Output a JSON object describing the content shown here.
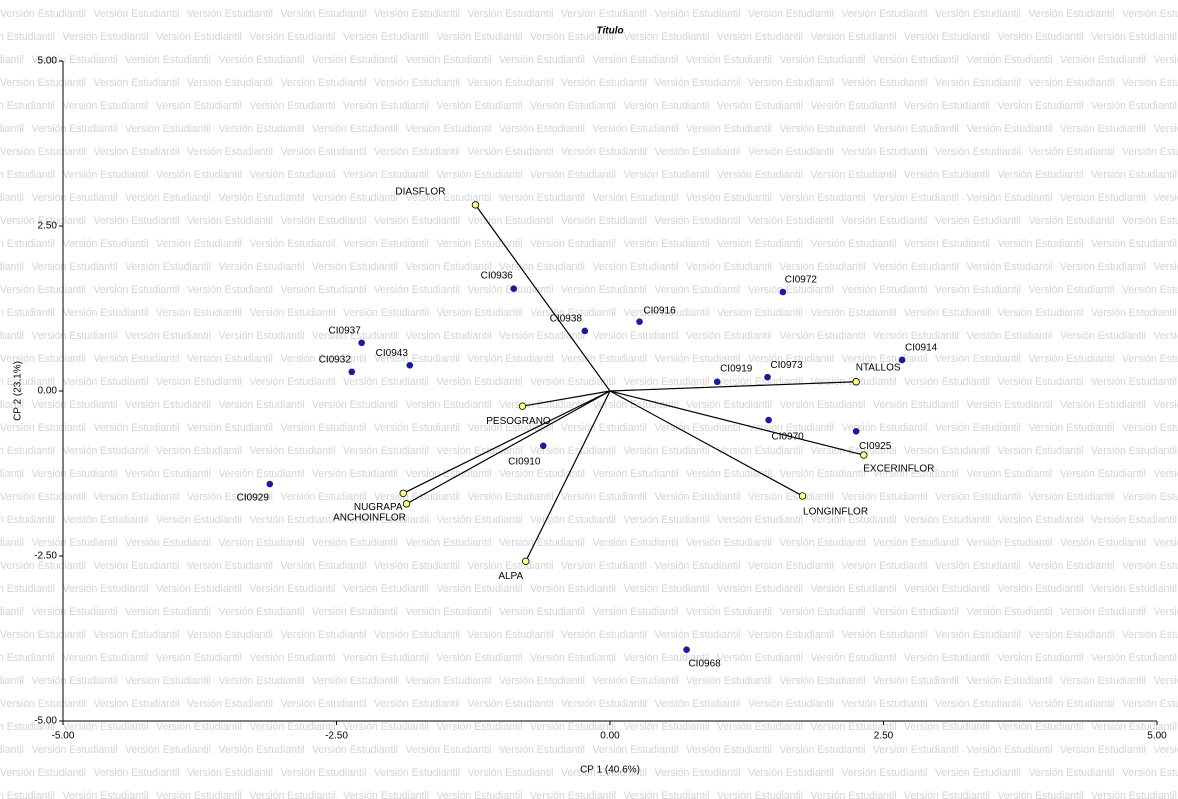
{
  "chart_data": {
    "type": "biplot",
    "title": "Título",
    "watermark": "Versión Estudiantil",
    "x_label": "CP 1 (40.6%)",
    "y_label": "CP 2 (23.1%)",
    "xlim": [
      -5,
      5
    ],
    "ylim": [
      -5,
      5
    ],
    "xticks": [
      {
        "value": -5,
        "label": "-5.00"
      },
      {
        "value": -2.5,
        "label": "-2.50"
      },
      {
        "value": 0,
        "label": "0.00"
      },
      {
        "value": 2.5,
        "label": "2.50"
      },
      {
        "value": 5,
        "label": "5.00"
      }
    ],
    "yticks": [
      {
        "value": -5,
        "label": "-5.00"
      },
      {
        "value": -2.5,
        "label": "-2.50"
      },
      {
        "value": 0,
        "label": "0.00"
      },
      {
        "value": 2.5,
        "label": "2.50"
      },
      {
        "value": 5,
        "label": "5.00"
      }
    ],
    "point_color": "#1a1a9c",
    "vector_color": "#ffff80",
    "points": [
      {
        "label": "CI0936",
        "x": -0.88,
        "y": 1.55
      },
      {
        "label": "CI0972",
        "x": 1.58,
        "y": 1.5
      },
      {
        "label": "CI0916",
        "x": 0.27,
        "y": 1.05
      },
      {
        "label": "CI0938",
        "x": -0.23,
        "y": 0.91
      },
      {
        "label": "CI0937",
        "x": -2.27,
        "y": 0.73
      },
      {
        "label": "CI0943",
        "x": -1.83,
        "y": 0.39
      },
      {
        "label": "CI0932",
        "x": -2.36,
        "y": 0.29
      },
      {
        "label": "CI0914",
        "x": 2.67,
        "y": 0.47
      },
      {
        "label": "CI0919",
        "x": 0.98,
        "y": 0.14
      },
      {
        "label": "CI0973",
        "x": 1.44,
        "y": 0.21
      },
      {
        "label": "CI0970",
        "x": 1.45,
        "y": -0.44
      },
      {
        "label": "CI0925",
        "x": 2.25,
        "y": -0.61
      },
      {
        "label": "CI0910",
        "x": -0.61,
        "y": -0.83
      },
      {
        "label": "CI0929",
        "x": -3.11,
        "y": -1.41
      },
      {
        "label": "CI0968",
        "x": 0.7,
        "y": -3.92
      }
    ],
    "vectors": [
      {
        "label": "DIASFLOR",
        "x": -1.23,
        "y": 2.82
      },
      {
        "label": "NTALLOS",
        "x": 2.25,
        "y": 0.14
      },
      {
        "label": "PESOGRANO",
        "x": -0.8,
        "y": -0.23
      },
      {
        "label": "EXCERINFLOR",
        "x": 2.32,
        "y": -0.97
      },
      {
        "label": "LONGINFLOR",
        "x": 1.76,
        "y": -1.59
      },
      {
        "label": "NUGRAPA",
        "x": -1.89,
        "y": -1.55
      },
      {
        "label": "ANCHOINFLOR",
        "x": -1.86,
        "y": -1.71
      },
      {
        "label": "ALPA",
        "x": -0.77,
        "y": -2.58
      }
    ]
  }
}
